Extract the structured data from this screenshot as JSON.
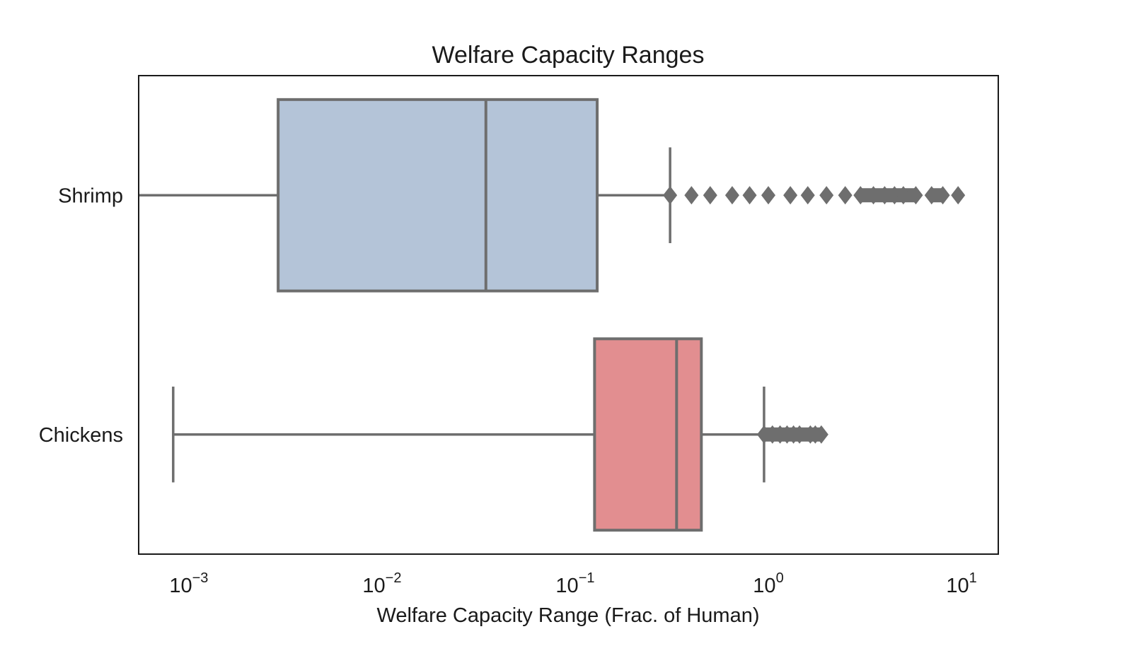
{
  "chart_data": {
    "type": "boxplot",
    "title": "Welfare Capacity Ranges",
    "xlabel": "Welfare Capacity Range (Frac. of Human)",
    "ylabel": "",
    "xscale": "log",
    "xlim": [
      0.00055,
      15.5
    ],
    "x_ticks": [
      {
        "value": 0.001,
        "base": "10",
        "exp": "−3"
      },
      {
        "value": 0.01,
        "base": "10",
        "exp": "−2"
      },
      {
        "value": 0.1,
        "base": "10",
        "exp": "−1"
      },
      {
        "value": 1,
        "base": "10",
        "exp": "0"
      },
      {
        "value": 10,
        "base": "10",
        "exp": "1"
      }
    ],
    "series": [
      {
        "name": "Shrimp",
        "color": "#b4c4d8",
        "whisker_low": 0.00055,
        "q1": 0.0029,
        "median": 0.0345,
        "q3": 0.13,
        "whisker_high": 0.31,
        "outliers": [
          0.31,
          0.4,
          0.5,
          0.65,
          0.8,
          1.0,
          1.3,
          1.6,
          2.0,
          2.5,
          3.0,
          3.5,
          4.0,
          4.5,
          5.0,
          5.8,
          7.0,
          8.0,
          9.6
        ]
      },
      {
        "name": "Chickens",
        "color": "#e28e90",
        "whisker_low": 0.00083,
        "q1": 0.126,
        "median": 0.335,
        "q3": 0.45,
        "whisker_high": 0.95,
        "outliers": [
          0.95,
          1.05,
          1.15,
          1.25,
          1.35,
          1.45,
          1.65,
          1.75,
          1.88
        ]
      }
    ],
    "colors": {
      "edge": "#6e6e6e",
      "frame": "#1a1a1a"
    }
  }
}
